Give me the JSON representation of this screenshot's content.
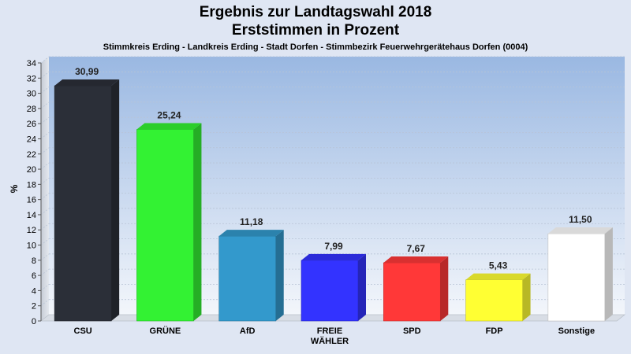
{
  "chart_data": {
    "type": "bar",
    "title": [
      "Ergebnis zur Landtagswahl 2018",
      "Erststimmen in Prozent"
    ],
    "subtitle": "Stimmkreis Erding - Landkreis Erding - Stadt Dorfen - Stimmbezirk Feuerwehrgerätehaus Dorfen (0004)",
    "ylabel": "%",
    "xlabel": "",
    "ylim": [
      0,
      34
    ],
    "yticks": [
      0,
      2,
      4,
      6,
      8,
      10,
      12,
      14,
      16,
      18,
      20,
      22,
      24,
      26,
      28,
      30,
      32,
      34
    ],
    "grid": true,
    "categories": [
      [
        "CSU"
      ],
      [
        "GRÜNE"
      ],
      [
        "AfD"
      ],
      [
        "FREIE",
        "WÄHLER"
      ],
      [
        "SPD"
      ],
      [
        "FDP"
      ],
      [
        "Sonstige"
      ]
    ],
    "values": [
      30.99,
      25.24,
      11.18,
      7.99,
      7.67,
      5.43,
      11.5
    ],
    "value_labels": [
      "30,99",
      "25,24",
      "11,18",
      "7,99",
      "7,67",
      "5,43",
      "11,50"
    ],
    "colors": [
      "#2b2f38",
      "#33f233",
      "#3399cc",
      "#3333ff",
      "#ff3838",
      "#ffff33",
      "#ffffff"
    ]
  }
}
